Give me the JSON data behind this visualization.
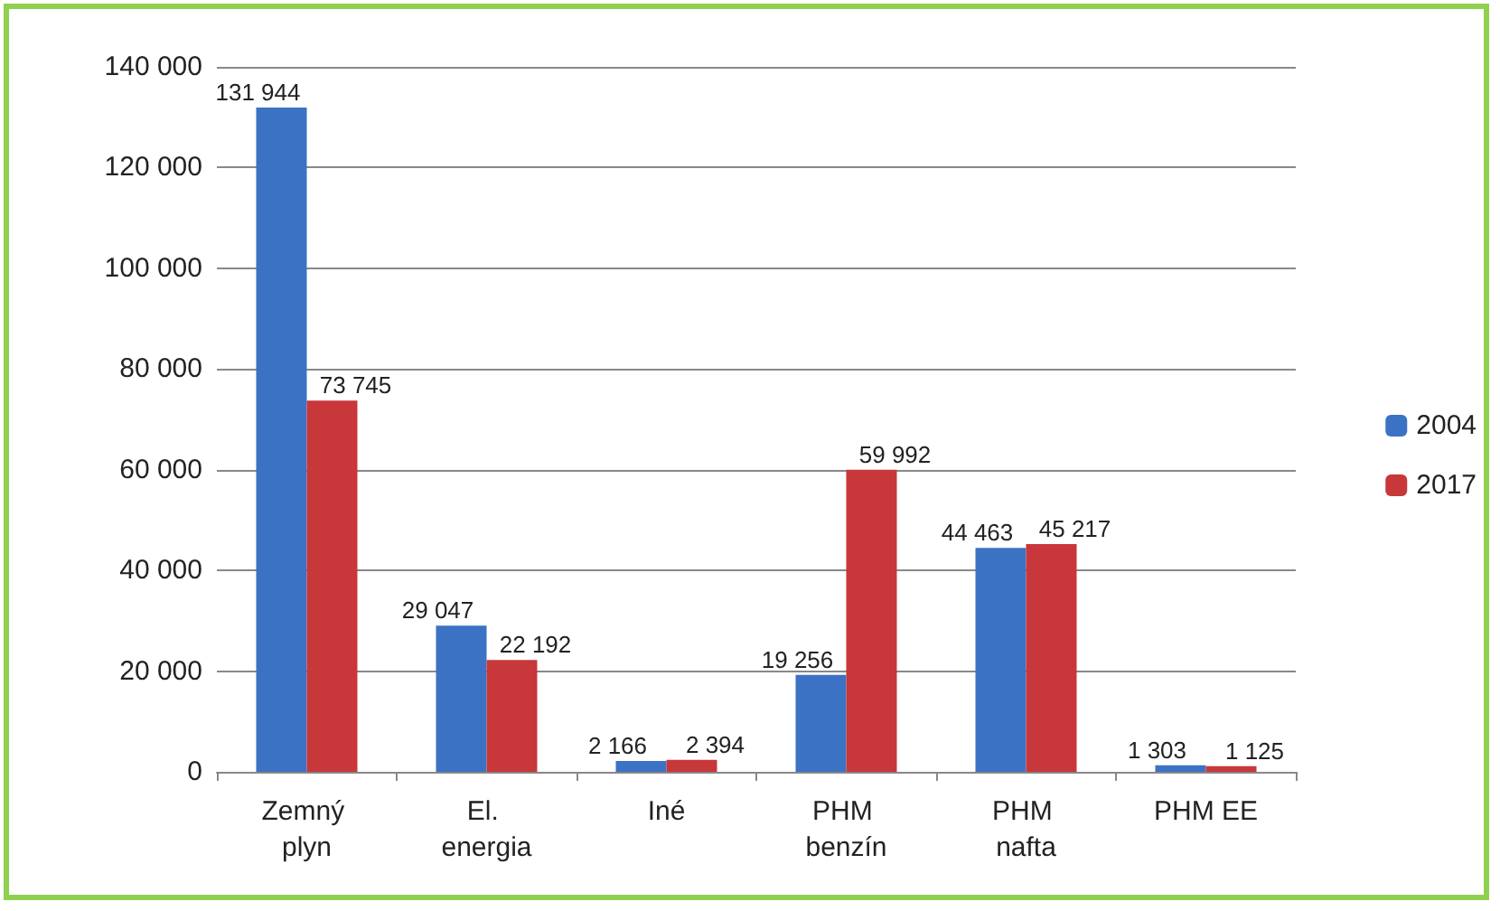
{
  "chart_data": {
    "type": "bar",
    "categories": [
      "Zemný plyn",
      "El. energia",
      "Iné",
      "PHM benzín",
      "PHM nafta",
      "PHM EE"
    ],
    "series": [
      {
        "name": "2004",
        "color": "#3c72c4",
        "values": [
          131944,
          29047,
          2166,
          19256,
          44463,
          1303
        ],
        "value_labels": [
          "131 944",
          "29 047",
          "2 166",
          "19 256",
          "44 463",
          "1 303"
        ]
      },
      {
        "name": "2017",
        "color": "#c8373a",
        "values": [
          73745,
          22192,
          2394,
          59992,
          45217,
          1125
        ],
        "value_labels": [
          "73 745",
          "22 192",
          "2 394",
          "59 992",
          "45 217",
          "1 125"
        ]
      }
    ],
    "ylim": [
      0,
      140000
    ],
    "yticks": [
      {
        "value": 0,
        "label": "0"
      },
      {
        "value": 20000,
        "label": "20 000"
      },
      {
        "value": 40000,
        "label": "40 000"
      },
      {
        "value": 60000,
        "label": "60 000"
      },
      {
        "value": 80000,
        "label": "80 000"
      },
      {
        "value": 100000,
        "label": "100 000"
      },
      {
        "value": 120000,
        "label": "120 000"
      },
      {
        "value": 140000,
        "label": "140 000"
      }
    ],
    "grid": "y",
    "legend": "right"
  }
}
